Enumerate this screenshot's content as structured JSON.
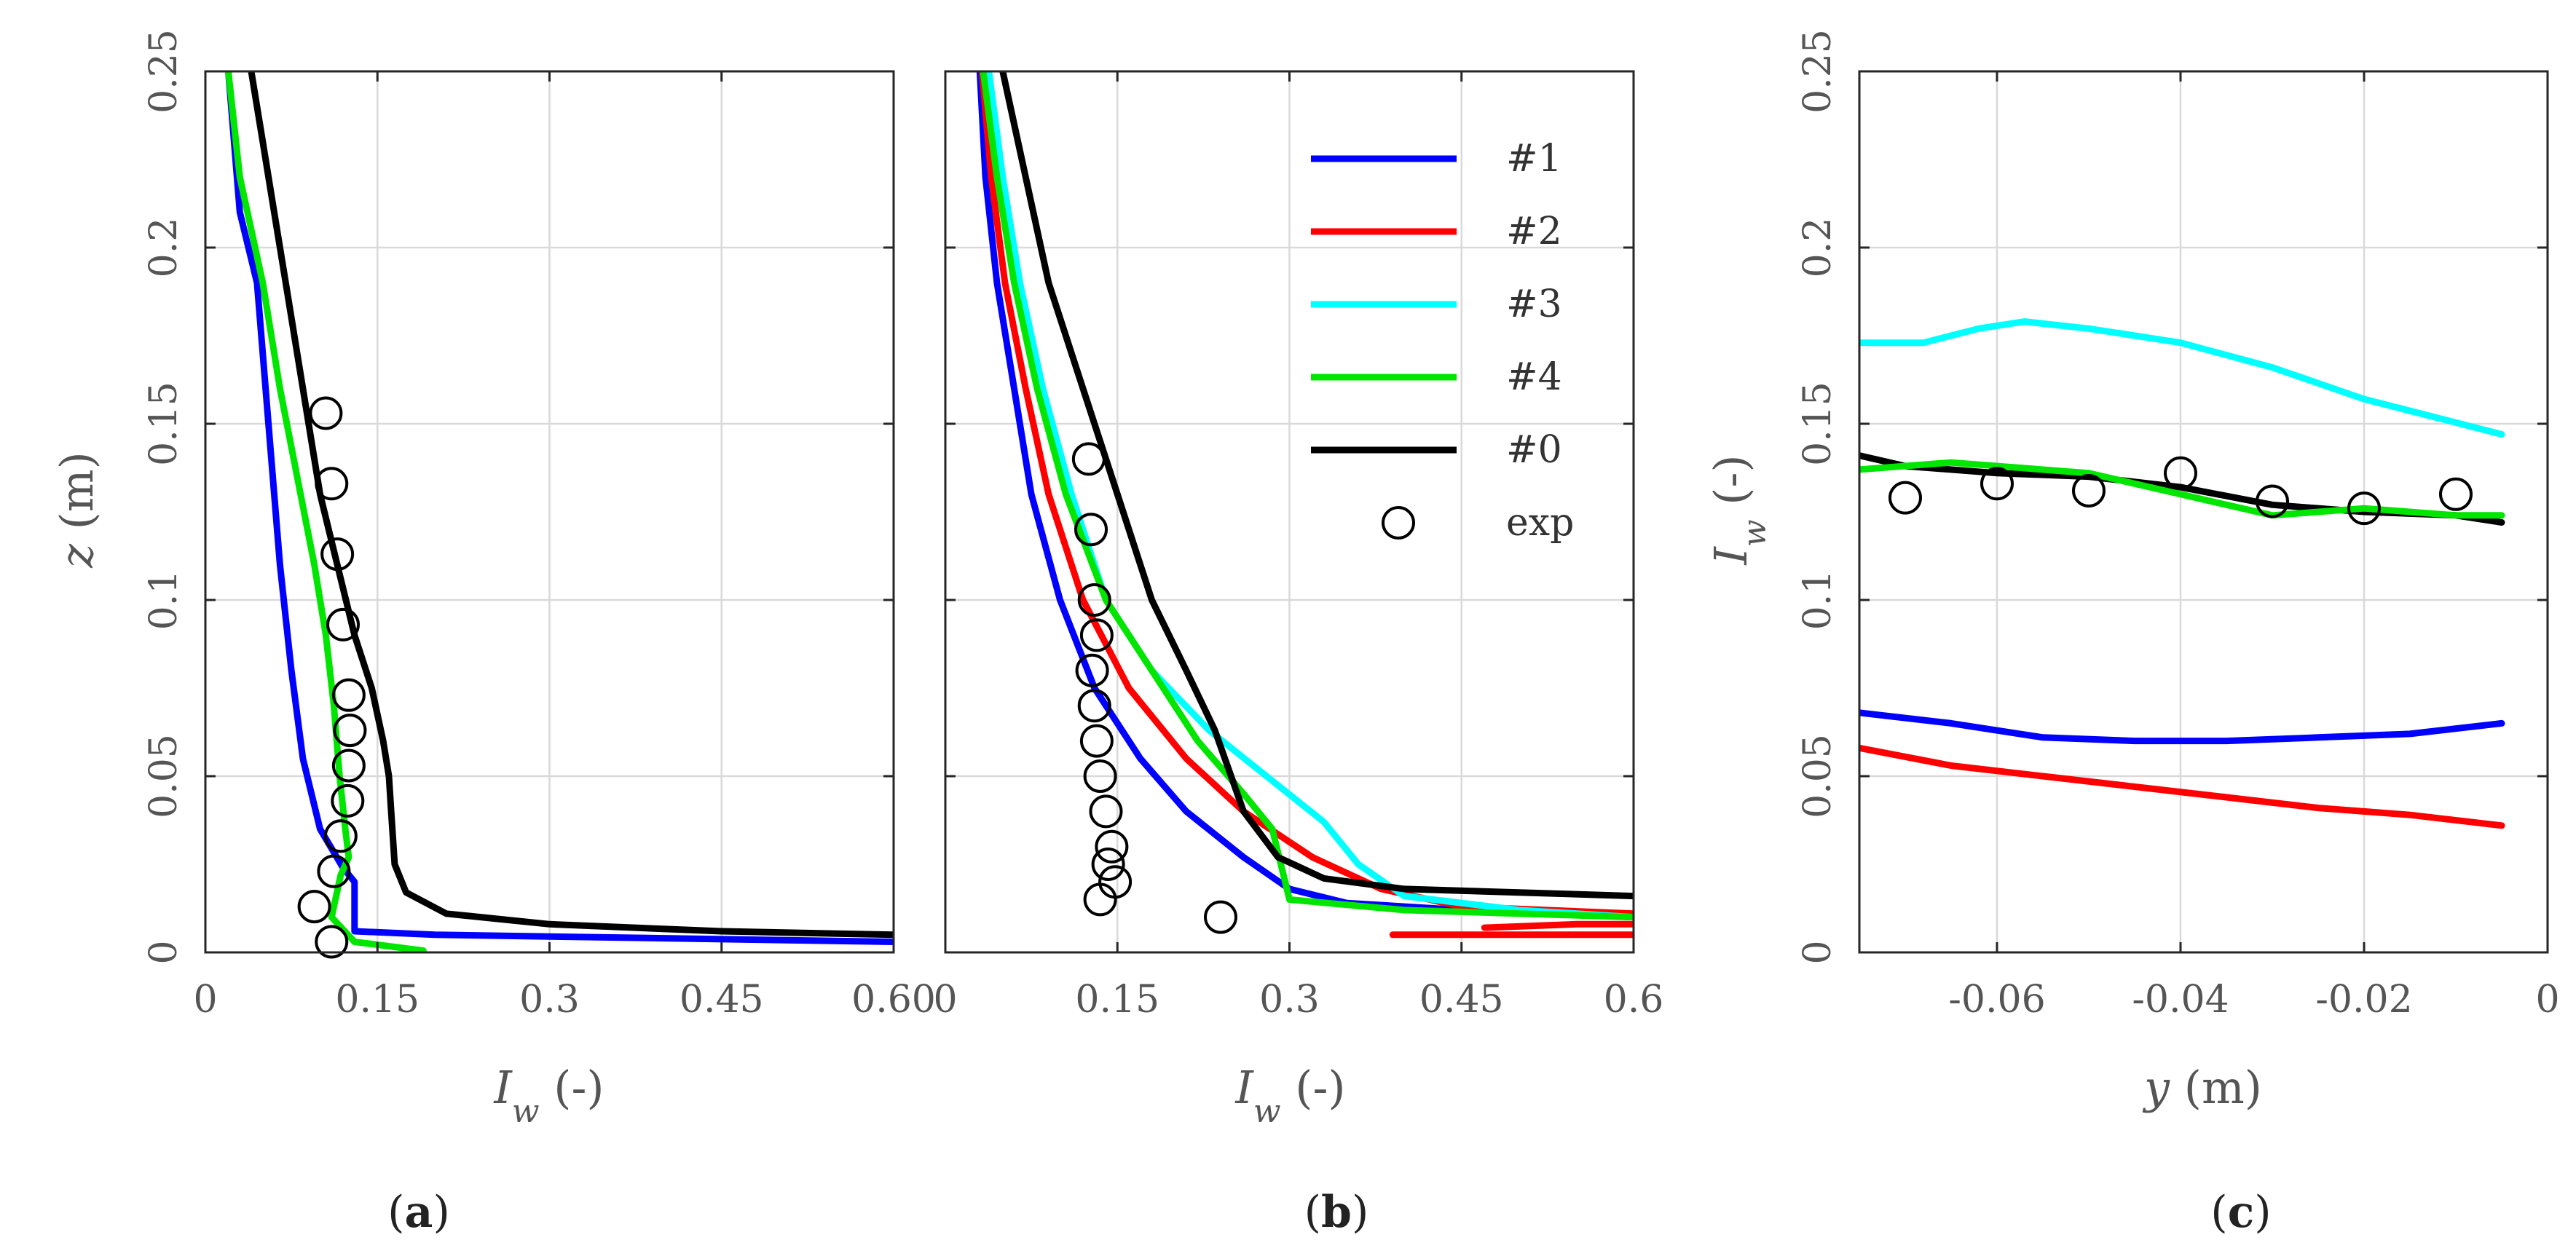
{
  "chart_data": [
    {
      "type": "line",
      "panel_label": "(a)",
      "xlabel": "I_w (-)",
      "ylabel": "z (m)",
      "xlim": [
        0,
        0.6
      ],
      "ylim": [
        0,
        0.25
      ],
      "xticks": [
        0,
        0.15,
        0.3,
        0.45,
        0.6
      ],
      "xtick_labels": [
        "0",
        "0.15",
        "0.3",
        "0.45",
        "0.60"
      ],
      "yticks": [
        0,
        0.05,
        0.1,
        0.15,
        0.2,
        0.25
      ],
      "ytick_labels": [
        "0",
        "0.05",
        "0.1",
        "0.15",
        "0.2",
        "0.25"
      ],
      "grid": true,
      "series": [
        {
          "name": "#1",
          "color": "#0000ff",
          "points": [
            [
              0.02,
              0.25
            ],
            [
              0.03,
              0.21
            ],
            [
              0.045,
              0.19
            ],
            [
              0.055,
              0.15
            ],
            [
              0.065,
              0.11
            ],
            [
              0.075,
              0.08
            ],
            [
              0.085,
              0.055
            ],
            [
              0.1,
              0.035
            ],
            [
              0.12,
              0.024
            ],
            [
              0.13,
              0.02
            ],
            [
              0.13,
              0.006
            ],
            [
              0.2,
              0.005
            ],
            [
              0.4,
              0.004
            ],
            [
              0.6,
              0.003
            ]
          ]
        },
        {
          "name": "#4",
          "color": "#00e600",
          "points": [
            [
              0.02,
              0.25
            ],
            [
              0.03,
              0.22
            ],
            [
              0.05,
              0.19
            ],
            [
              0.065,
              0.16
            ],
            [
              0.08,
              0.135
            ],
            [
              0.095,
              0.11
            ],
            [
              0.105,
              0.09
            ],
            [
              0.112,
              0.07
            ],
            [
              0.117,
              0.05
            ],
            [
              0.122,
              0.035
            ],
            [
              0.125,
              0.027
            ],
            [
              0.118,
              0.022
            ],
            [
              0.11,
              0.01
            ],
            [
              0.13,
              0.003
            ],
            [
              0.19,
              0.0005
            ]
          ]
        },
        {
          "name": "#0",
          "color": "#000000",
          "points": [
            [
              0.04,
              0.25
            ],
            [
              0.05,
              0.23
            ],
            [
              0.06,
              0.21
            ],
            [
              0.07,
              0.19
            ],
            [
              0.085,
              0.16
            ],
            [
              0.1,
              0.13
            ],
            [
              0.115,
              0.11
            ],
            [
              0.13,
              0.09
            ],
            [
              0.145,
              0.075
            ],
            [
              0.155,
              0.06
            ],
            [
              0.16,
              0.05
            ],
            [
              0.162,
              0.04
            ],
            [
              0.165,
              0.025
            ],
            [
              0.175,
              0.017
            ],
            [
              0.21,
              0.011
            ],
            [
              0.3,
              0.008
            ],
            [
              0.45,
              0.006
            ],
            [
              0.6,
              0.005
            ]
          ]
        }
      ],
      "markers": {
        "name": "exp",
        "points": [
          [
            0.105,
            0.153
          ],
          [
            0.11,
            0.133
          ],
          [
            0.115,
            0.113
          ],
          [
            0.12,
            0.093
          ],
          [
            0.125,
            0.073
          ],
          [
            0.126,
            0.063
          ],
          [
            0.125,
            0.053
          ],
          [
            0.124,
            0.043
          ],
          [
            0.118,
            0.033
          ],
          [
            0.112,
            0.023
          ],
          [
            0.095,
            0.013
          ],
          [
            0.11,
            0.003
          ]
        ]
      }
    },
    {
      "type": "line",
      "panel_label": "(b)",
      "xlabel": "I_w (-)",
      "xlim": [
        0,
        0.6
      ],
      "ylim": [
        0,
        0.25
      ],
      "xticks": [
        0,
        0.15,
        0.3,
        0.45,
        0.6
      ],
      "xtick_labels": [
        "0",
        "0.15",
        "0.3",
        "0.45",
        "0.6"
      ],
      "grid": true,
      "legend_position": "top-right",
      "series": [
        {
          "name": "#1",
          "color": "#0000ff",
          "points": [
            [
              0.03,
              0.25
            ],
            [
              0.035,
              0.22
            ],
            [
              0.045,
              0.19
            ],
            [
              0.06,
              0.16
            ],
            [
              0.075,
              0.13
            ],
            [
              0.1,
              0.1
            ],
            [
              0.13,
              0.075
            ],
            [
              0.17,
              0.055
            ],
            [
              0.21,
              0.04
            ],
            [
              0.26,
              0.027
            ],
            [
              0.3,
              0.018
            ],
            [
              0.35,
              0.014
            ],
            [
              0.45,
              0.012
            ],
            [
              0.6,
              0.01
            ]
          ]
        },
        {
          "name": "#2",
          "color": "#ff0000",
          "points": [
            [
              0.032,
              0.25
            ],
            [
              0.04,
              0.22
            ],
            [
              0.052,
              0.19
            ],
            [
              0.07,
              0.16
            ],
            [
              0.09,
              0.13
            ],
            [
              0.12,
              0.1
            ],
            [
              0.16,
              0.075
            ],
            [
              0.21,
              0.055
            ],
            [
              0.26,
              0.04
            ],
            [
              0.32,
              0.027
            ],
            [
              0.38,
              0.018
            ],
            [
              0.45,
              0.013
            ],
            [
              0.6,
              0.011
            ]
          ]
        },
        {
          "name": "#3",
          "color": "#00ffff",
          "points": [
            [
              0.038,
              0.25
            ],
            [
              0.05,
              0.22
            ],
            [
              0.065,
              0.19
            ],
            [
              0.085,
              0.16
            ],
            [
              0.11,
              0.13
            ],
            [
              0.14,
              0.1
            ],
            [
              0.18,
              0.08
            ],
            [
              0.23,
              0.063
            ],
            [
              0.28,
              0.05
            ],
            [
              0.33,
              0.037
            ],
            [
              0.36,
              0.025
            ],
            [
              0.4,
              0.016
            ],
            [
              0.5,
              0.012
            ],
            [
              0.6,
              0.01
            ]
          ]
        },
        {
          "name": "#4",
          "color": "#00e600",
          "points": [
            [
              0.033,
              0.25
            ],
            [
              0.045,
              0.22
            ],
            [
              0.06,
              0.19
            ],
            [
              0.08,
              0.16
            ],
            [
              0.105,
              0.13
            ],
            [
              0.14,
              0.1
            ],
            [
              0.18,
              0.08
            ],
            [
              0.22,
              0.06
            ],
            [
              0.26,
              0.045
            ],
            [
              0.285,
              0.035
            ],
            [
              0.3,
              0.015
            ],
            [
              0.4,
              0.012
            ],
            [
              0.6,
              0.01
            ]
          ]
        },
        {
          "name": "#0",
          "color": "#000000",
          "points": [
            [
              0.05,
              0.25
            ],
            [
              0.07,
              0.22
            ],
            [
              0.09,
              0.19
            ],
            [
              0.12,
              0.16
            ],
            [
              0.15,
              0.13
            ],
            [
              0.18,
              0.1
            ],
            [
              0.21,
              0.08
            ],
            [
              0.235,
              0.063
            ],
            [
              0.26,
              0.04
            ],
            [
              0.29,
              0.027
            ],
            [
              0.33,
              0.021
            ],
            [
              0.4,
              0.018
            ],
            [
              0.5,
              0.017
            ],
            [
              0.6,
              0.016
            ]
          ]
        },
        {
          "name": "#2",
          "color": "#ff0000",
          "points": [
            [
              0.39,
              0.005
            ],
            [
              0.5,
              0.005
            ],
            [
              0.6,
              0.005
            ]
          ]
        },
        {
          "name": "#2",
          "color": "#ff0000",
          "points": [
            [
              0.47,
              0.007
            ],
            [
              0.55,
              0.008
            ],
            [
              0.6,
              0.008
            ]
          ]
        }
      ],
      "markers": {
        "name": "exp",
        "points": [
          [
            0.125,
            0.14
          ],
          [
            0.127,
            0.12
          ],
          [
            0.13,
            0.1
          ],
          [
            0.132,
            0.09
          ],
          [
            0.128,
            0.08
          ],
          [
            0.13,
            0.07
          ],
          [
            0.132,
            0.06
          ],
          [
            0.135,
            0.05
          ],
          [
            0.14,
            0.04
          ],
          [
            0.145,
            0.03
          ],
          [
            0.142,
            0.025
          ],
          [
            0.148,
            0.02
          ],
          [
            0.135,
            0.015
          ],
          [
            0.24,
            0.01
          ]
        ]
      },
      "legend": {
        "entries": [
          {
            "label": "#1",
            "color": "#0000ff",
            "kind": "line"
          },
          {
            "label": "#2",
            "color": "#ff0000",
            "kind": "line"
          },
          {
            "label": "#3",
            "color": "#00ffff",
            "kind": "line"
          },
          {
            "label": "#4",
            "color": "#00e600",
            "kind": "line"
          },
          {
            "label": "#0",
            "color": "#000000",
            "kind": "line"
          },
          {
            "label": "exp",
            "color": "#000000",
            "kind": "marker"
          }
        ]
      }
    },
    {
      "type": "line",
      "panel_label": "(c)",
      "xlabel": "y (m)",
      "ylabel": "I_w (-)",
      "xlim": [
        -0.075,
        0
      ],
      "ylim": [
        0,
        0.25
      ],
      "xticks": [
        -0.06,
        -0.04,
        -0.02,
        0
      ],
      "xtick_labels": [
        "-0.06",
        "-0.04",
        "-0.02",
        "0"
      ],
      "yticks": [
        0,
        0.05,
        0.1,
        0.15,
        0.2,
        0.25
      ],
      "ytick_labels": [
        "0",
        "0.05",
        "0.1",
        "0.15",
        "0.2",
        "0.25"
      ],
      "grid": true,
      "series": [
        {
          "name": "#3",
          "color": "#00ffff",
          "points": [
            [
              -0.075,
              0.173
            ],
            [
              -0.068,
              0.173
            ],
            [
              -0.062,
              0.177
            ],
            [
              -0.057,
              0.179
            ],
            [
              -0.05,
              0.177
            ],
            [
              -0.04,
              0.173
            ],
            [
              -0.03,
              0.166
            ],
            [
              -0.02,
              0.157
            ],
            [
              -0.005,
              0.147
            ]
          ]
        },
        {
          "name": "#0",
          "color": "#000000",
          "points": [
            [
              -0.075,
              0.141
            ],
            [
              -0.07,
              0.138
            ],
            [
              -0.06,
              0.136
            ],
            [
              -0.05,
              0.135
            ],
            [
              -0.04,
              0.132
            ],
            [
              -0.03,
              0.127
            ],
            [
              -0.02,
              0.125
            ],
            [
              -0.01,
              0.124
            ],
            [
              -0.005,
              0.122
            ]
          ]
        },
        {
          "name": "#4",
          "color": "#00e600",
          "points": [
            [
              -0.075,
              0.137
            ],
            [
              -0.065,
              0.139
            ],
            [
              -0.05,
              0.136
            ],
            [
              -0.04,
              0.13
            ],
            [
              -0.035,
              0.127
            ],
            [
              -0.03,
              0.124
            ],
            [
              -0.02,
              0.126
            ],
            [
              -0.01,
              0.124
            ],
            [
              -0.005,
              0.124
            ]
          ]
        },
        {
          "name": "#1",
          "color": "#0000ff",
          "points": [
            [
              -0.075,
              0.068
            ],
            [
              -0.065,
              0.065
            ],
            [
              -0.055,
              0.061
            ],
            [
              -0.045,
              0.06
            ],
            [
              -0.035,
              0.06
            ],
            [
              -0.025,
              0.061
            ],
            [
              -0.015,
              0.062
            ],
            [
              -0.005,
              0.065
            ]
          ]
        },
        {
          "name": "#2",
          "color": "#ff0000",
          "points": [
            [
              -0.075,
              0.058
            ],
            [
              -0.065,
              0.053
            ],
            [
              -0.055,
              0.05
            ],
            [
              -0.045,
              0.047
            ],
            [
              -0.035,
              0.044
            ],
            [
              -0.025,
              0.041
            ],
            [
              -0.015,
              0.039
            ],
            [
              -0.005,
              0.036
            ]
          ]
        }
      ],
      "markers": {
        "name": "exp",
        "points": [
          [
            -0.07,
            0.129
          ],
          [
            -0.06,
            0.133
          ],
          [
            -0.05,
            0.131
          ],
          [
            -0.04,
            0.136
          ],
          [
            -0.03,
            0.128
          ],
          [
            -0.02,
            0.126
          ],
          [
            -0.01,
            0.13
          ]
        ]
      }
    }
  ]
}
